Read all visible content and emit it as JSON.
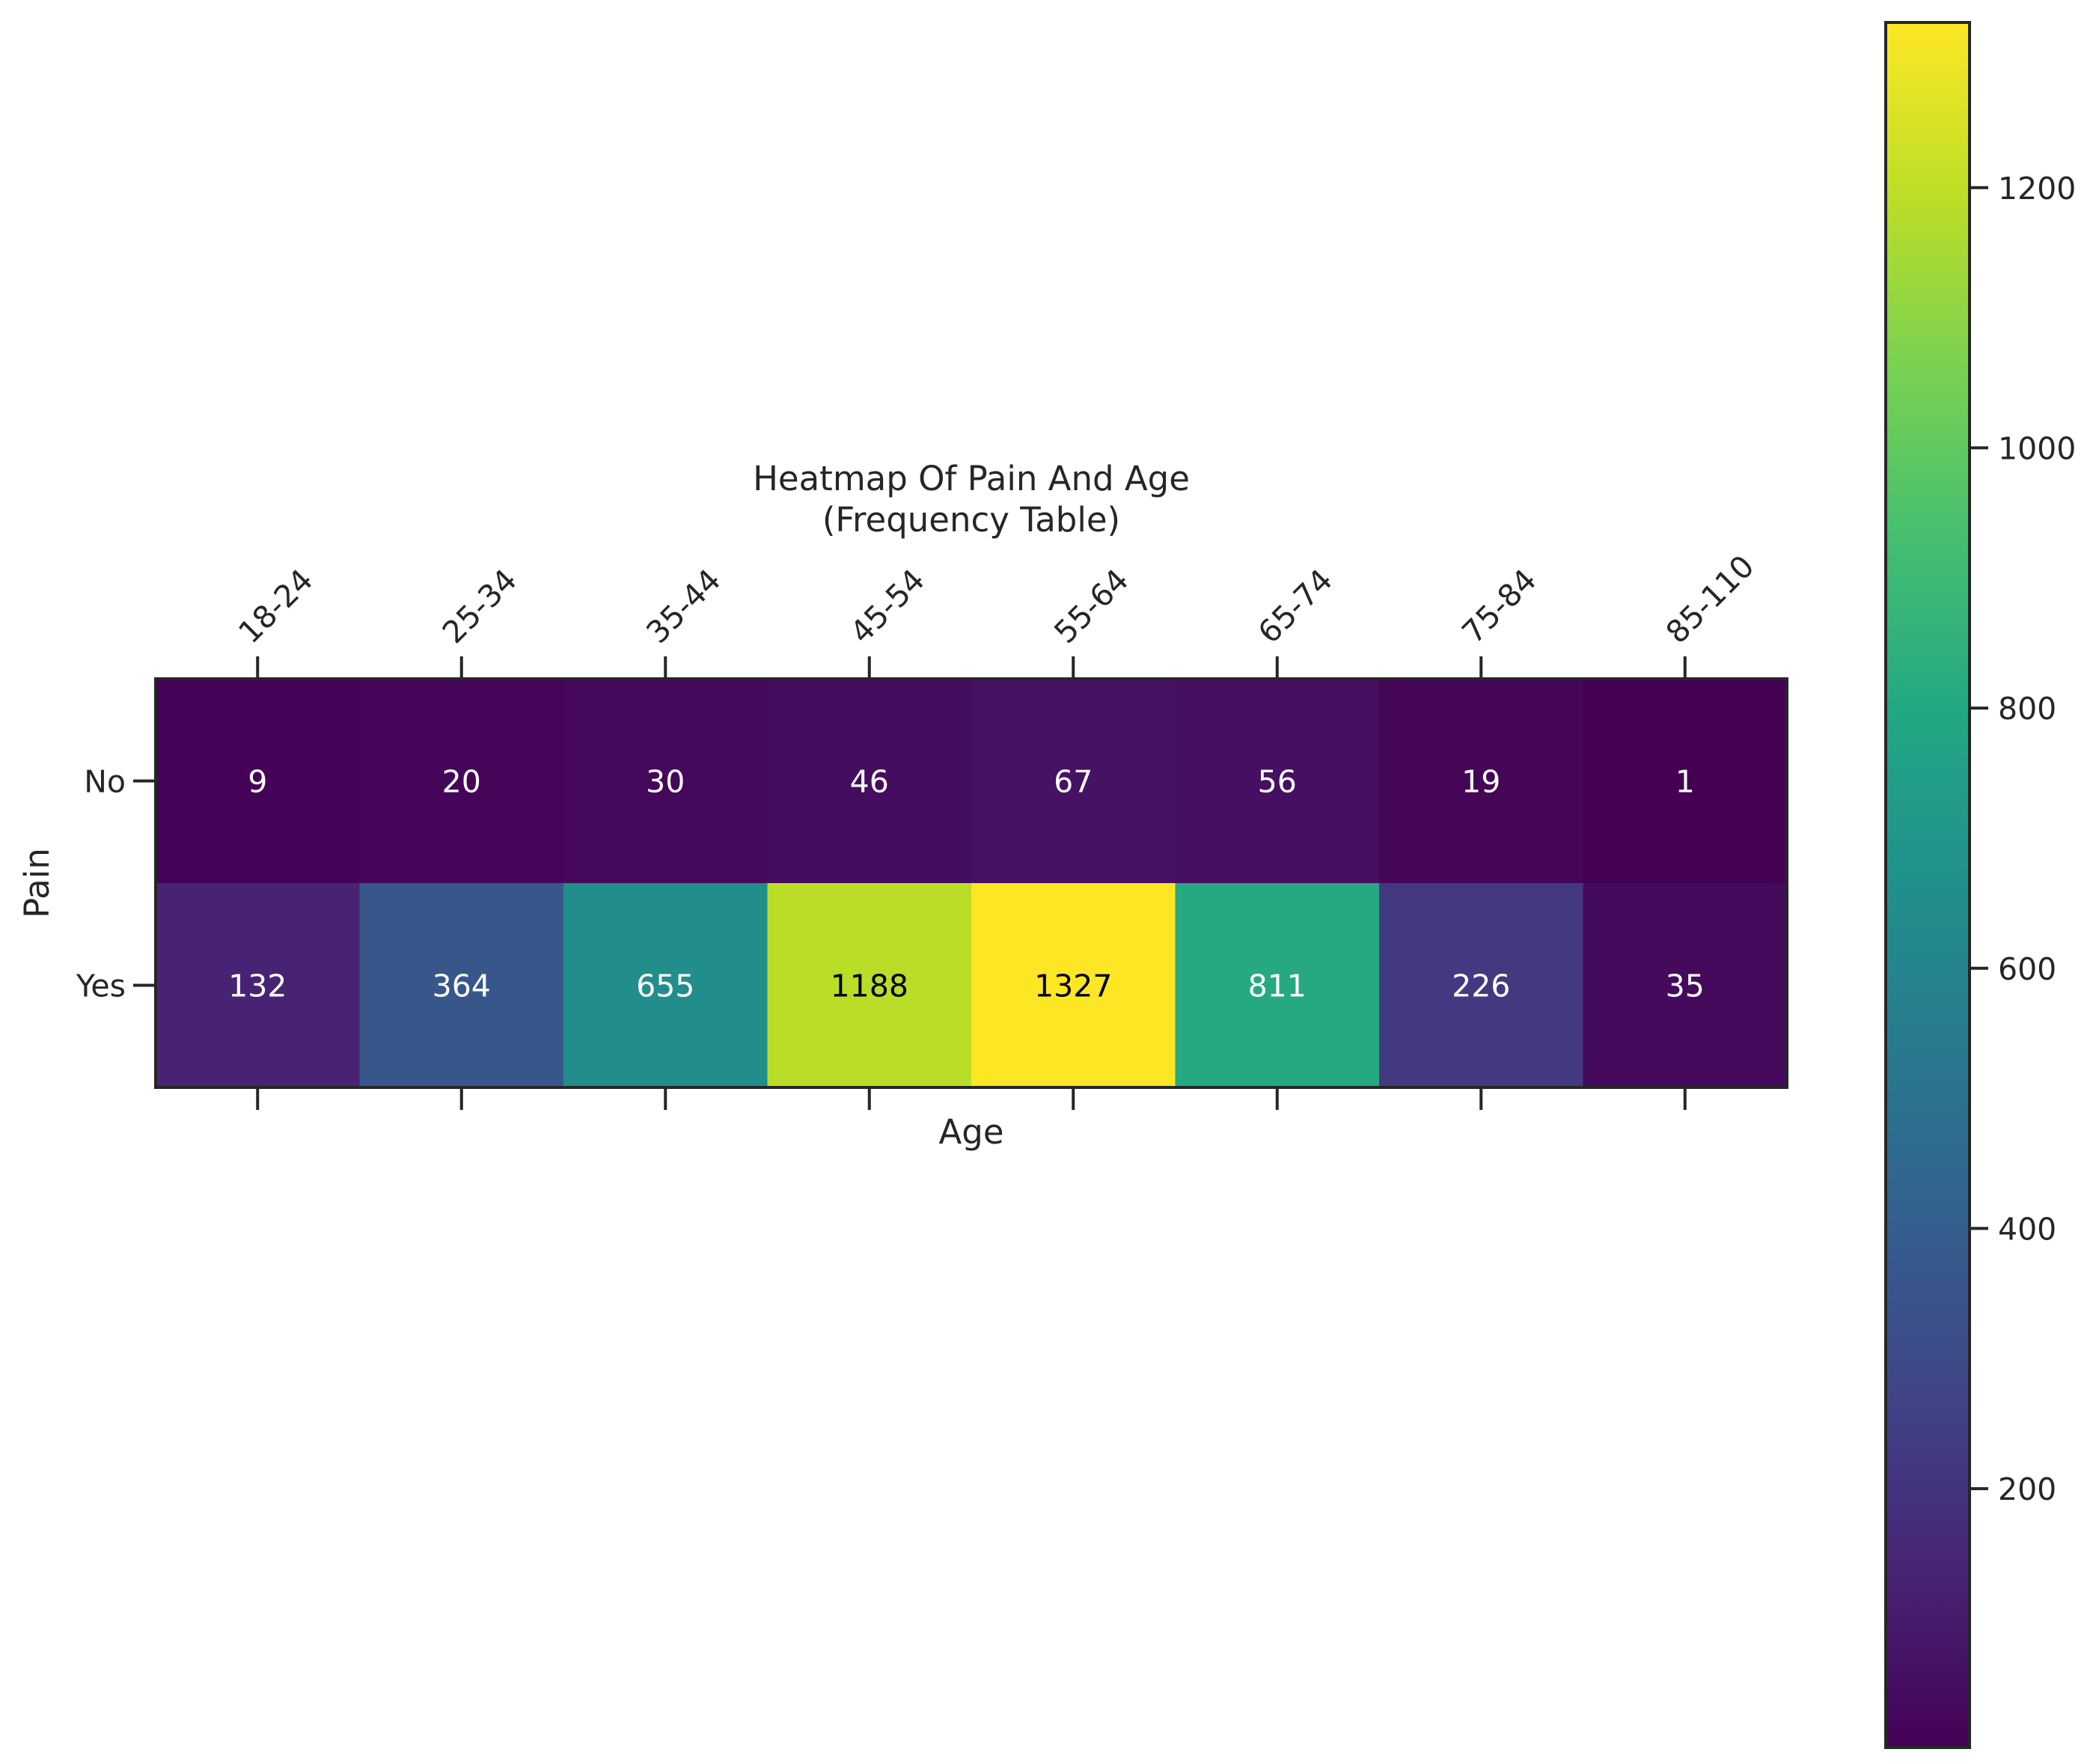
{
  "chart_data": {
    "type": "heatmap",
    "title": "Heatmap Of Pain And Age\n(Frequency Table)",
    "xlabel": "Age",
    "ylabel": "Pain",
    "x_categories": [
      "18-24",
      "25-34",
      "35-44",
      "45-54",
      "55-64",
      "65-74",
      "75-84",
      "85-110"
    ],
    "y_categories": [
      "No",
      "Yes"
    ],
    "values": [
      [
        9,
        20,
        30,
        46,
        67,
        56,
        19,
        1
      ],
      [
        132,
        364,
        655,
        1188,
        1327,
        811,
        226,
        35
      ]
    ],
    "colormap": "viridis",
    "color_range": [
      1,
      1327
    ],
    "colorbar_ticks": [
      200,
      400,
      600,
      800,
      1000,
      1200
    ],
    "x_tick_position": "top",
    "grid": false
  }
}
